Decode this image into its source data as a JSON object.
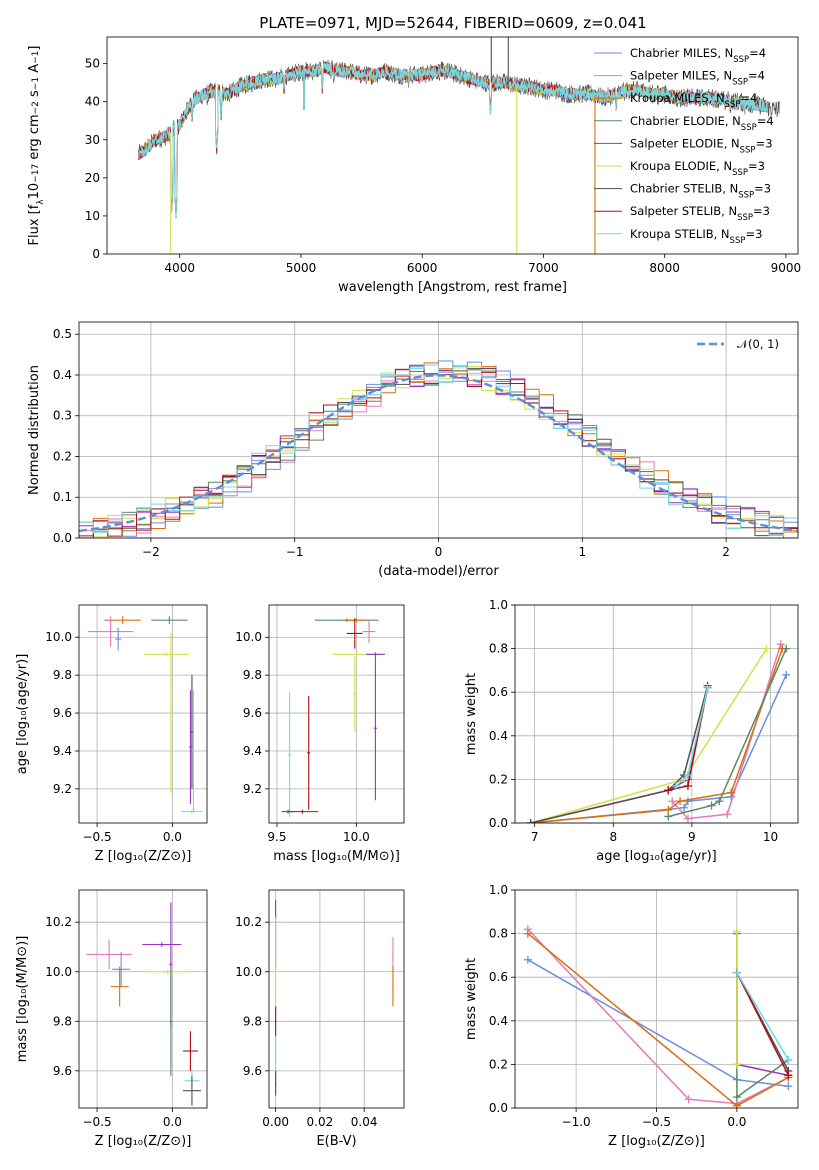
{
  "colors": [
    "#6a8ee0",
    "#e27bbf",
    "#d96e10",
    "#5a8a63",
    "#9a33bf",
    "#d6df4a",
    "#505050",
    "#b01010",
    "#75d8e0"
  ],
  "chart_data": [
    {
      "id": "spectrum",
      "type": "line",
      "title": "PLATE=0971, MJD=52644, FIBERID=0609, z=0.041",
      "xlabel": "wavelength [Angstrom, rest frame]",
      "ylabel": "Flux [fλ10⁻¹⁷ erg cm⁻² s⁻¹ A⁻¹]",
      "xlim": [
        3400,
        9100
      ],
      "ylim": [
        0,
        57
      ],
      "xticks": [
        "4000",
        "5000",
        "6000",
        "7000",
        "8000",
        "9000"
      ],
      "yticks": [
        "0",
        "10",
        "20",
        "30",
        "40",
        "50"
      ],
      "legend_position": "top-right",
      "series_names": [
        "Chabrier MILES, N_SSP=4",
        "Salpeter MILES, N_SSP=4",
        "Kroupa MILES, N_SSP=4",
        "Chabrier ELODIE, N_SSP=4",
        "Salpeter ELODIE, N_SSP=3",
        "Kroupa ELODIE, N_SSP=3",
        "Chabrier STELIB, N_SSP=3",
        "Salpeter STELIB, N_SSP=3",
        "Kroupa STELIB, N_SSP=3"
      ],
      "continuum": {
        "x": [
          3650,
          3700,
          3800,
          3900,
          3950,
          4000,
          4100,
          4200,
          4300,
          4400,
          4500,
          4600,
          4700,
          4800,
          4900,
          5000,
          5100,
          5200,
          5300,
          5400,
          5500,
          5600,
          5700,
          5800,
          5900,
          6000,
          6100,
          6200,
          6300,
          6400,
          6500,
          6600,
          6700,
          6800,
          6900,
          7000,
          7100,
          7200,
          7300,
          7400,
          7500,
          7600,
          7700,
          7800,
          7900,
          8000,
          8100,
          8200,
          8400,
          8600,
          8800,
          8900
        ],
        "y": [
          26,
          27,
          30,
          31,
          33,
          34,
          40,
          42,
          43,
          42,
          44,
          45,
          46,
          46,
          47,
          48,
          48,
          49,
          48,
          48,
          47,
          47,
          48,
          47,
          47,
          47,
          48,
          48,
          47,
          46,
          45,
          45,
          45,
          44,
          44,
          43,
          43,
          42,
          42,
          42,
          41,
          42,
          43,
          43,
          42,
          42,
          41,
          41,
          41,
          40,
          39,
          38
        ]
      },
      "absorption_lines": [
        [
          3934,
          11
        ],
        [
          3969,
          10
        ],
        [
          4102,
          35
        ],
        [
          4227,
          40
        ],
        [
          4305,
          27
        ],
        [
          4341,
          36
        ],
        [
          4861,
          42
        ],
        [
          5175,
          43
        ],
        [
          5270,
          45
        ],
        [
          5890,
          44
        ],
        [
          6563,
          37
        ],
        [
          7600,
          38
        ],
        [
          8500,
          38
        ],
        [
          8542,
          37
        ],
        [
          8662,
          37
        ]
      ],
      "spikes": [
        {
          "x": 3925,
          "bottom": 0,
          "series": 5
        },
        {
          "x": 6780,
          "bottom": 0,
          "series": 5
        },
        {
          "x": 7425,
          "bottom": 0,
          "series": 2
        },
        {
          "x": 6570,
          "top": 57,
          "series": 6
        },
        {
          "x": 6710,
          "top": 57,
          "series": 6
        }
      ]
    },
    {
      "id": "residuals",
      "type": "histogram",
      "xlabel": "(data-model)/error",
      "ylabel": "Normed distribution",
      "xlim": [
        -2.5,
        2.5
      ],
      "ylim": [
        0,
        0.53
      ],
      "xticks": [
        "−2",
        "−1",
        "0",
        "1",
        "2"
      ],
      "yticks": [
        "0.0",
        "0.1",
        "0.2",
        "0.3",
        "0.4",
        "0.5"
      ],
      "bin_width": 0.1,
      "reference_curve": {
        "name": "𝒩(0, 1)",
        "mean": 0,
        "sigma": 1
      },
      "legend_position": "top-right"
    },
    {
      "id": "age-vs-Z",
      "type": "scatter",
      "xlabel": "Z [log₁₀(Z/Z⊙)]",
      "ylabel": "age  [log₁₀(age/yr)]",
      "xlim": [
        -0.62,
        0.23
      ],
      "ylim": [
        9.02,
        10.17
      ],
      "xticks": [
        "−0.5",
        "0.0"
      ],
      "yticks": [
        "9.2",
        "9.4",
        "9.6",
        "9.8",
        "10.0"
      ],
      "crosses": [
        {
          "x": -0.33,
          "y": 10.09,
          "dx": 0.12,
          "dy": 0.02,
          "series": 2
        },
        {
          "x": -0.02,
          "y": 10.09,
          "dx": 0.12,
          "dy": 0.02,
          "series": 3
        },
        {
          "x": -0.41,
          "y": 10.03,
          "dx": 0.15,
          "dy": 0.08,
          "series": 1
        },
        {
          "x": -0.36,
          "y": 9.99,
          "dx": 0.02,
          "dy": 0.06,
          "series": 0
        },
        {
          "x": -0.04,
          "y": 9.91,
          "dx": 0.15,
          "dy": 0.01,
          "series": 5
        },
        {
          "x": -0.01,
          "y": 9.6,
          "dx": 0.01,
          "dy": 0.42,
          "series": 5
        },
        {
          "x": 0.13,
          "y": 9.5,
          "dx": 0.01,
          "dy": 0.3,
          "series": 6
        },
        {
          "x": 0.12,
          "y": 9.42,
          "dx": 0.01,
          "dy": 0.3,
          "series": 4
        },
        {
          "x": 0.14,
          "y": 9.4,
          "dx": 0.01,
          "dy": 0.32,
          "series": 8
        },
        {
          "x": 0.13,
          "y": 9.08,
          "dx": 0.07,
          "dy": 0.01,
          "series": 8
        }
      ]
    },
    {
      "id": "age-vs-mass",
      "type": "scatter",
      "xlabel": "mass [log₁₀(M/M⊙)]",
      "ylabel": "",
      "xlim": [
        9.45,
        10.3
      ],
      "ylim": [
        9.02,
        10.17
      ],
      "xticks": [
        "9.5",
        "10.0"
      ],
      "yticks": [
        "9.2",
        "9.4",
        "9.6",
        "9.8",
        "10.0"
      ],
      "crosses": [
        {
          "x": 9.94,
          "y": 10.09,
          "dx": 0.2,
          "dy": 0.01,
          "series": 3
        },
        {
          "x": 10.0,
          "y": 10.09,
          "dx": 0.06,
          "dy": 0.01,
          "series": 2
        },
        {
          "x": 9.99,
          "y": 10.02,
          "dx": 0.05,
          "dy": 0.08,
          "series": 7
        },
        {
          "x": 10.08,
          "y": 10.03,
          "dx": 0.04,
          "dy": 0.06,
          "series": 1
        },
        {
          "x": 10.0,
          "y": 9.91,
          "dx": 0.15,
          "dy": 0.01,
          "series": 5
        },
        {
          "x": 10.12,
          "y": 9.91,
          "dx": 0.06,
          "dy": 0.01,
          "series": 4
        },
        {
          "x": 9.99,
          "y": 9.7,
          "dx": 0.01,
          "dy": 0.2,
          "series": 5
        },
        {
          "x": 10.12,
          "y": 9.52,
          "dx": 0.01,
          "dy": 0.38,
          "series": 4
        },
        {
          "x": 9.7,
          "y": 9.39,
          "dx": 0.01,
          "dy": 0.3,
          "series": 7
        },
        {
          "x": 9.58,
          "y": 9.38,
          "dx": 0.01,
          "dy": 0.33,
          "series": 8
        },
        {
          "x": 9.66,
          "y": 9.08,
          "dx": 0.1,
          "dy": 0.01,
          "series": 7
        },
        {
          "x": 9.57,
          "y": 9.08,
          "dx": 0.04,
          "dy": 0.01,
          "series": 6
        }
      ]
    },
    {
      "id": "weight-vs-age",
      "type": "line",
      "xlabel": "age  [log₁₀(age/yr)]",
      "ylabel": "mass weight",
      "xlim": [
        6.75,
        10.35
      ],
      "ylim": [
        0,
        1
      ],
      "xticks": [
        "7",
        "8",
        "9",
        "10"
      ],
      "yticks": [
        "0.0",
        "0.2",
        "0.4",
        "0.6",
        "0.8",
        "1.0"
      ],
      "series": [
        {
          "x": [
            6.95,
            8.9,
            8.95,
            9.5,
            10.2
          ],
          "y": [
            0.0,
            0.07,
            0.1,
            0.12,
            0.68
          ],
          "series": 0
        },
        {
          "x": [
            8.75,
            8.95,
            9.45,
            10.13
          ],
          "y": [
            0.1,
            0.02,
            0.04,
            0.82
          ],
          "series": 1
        },
        {
          "x": [
            6.95,
            8.7,
            8.85,
            9.5,
            10.15
          ],
          "y": [
            0.0,
            0.06,
            0.1,
            0.14,
            0.8
          ],
          "series": 2
        },
        {
          "x": [
            8.7,
            9.25,
            9.35,
            10.2
          ],
          "y": [
            0.03,
            0.08,
            0.1,
            0.8
          ],
          "series": 3
        },
        {
          "x": [
            6.95,
            8.7,
            8.95,
            9.2
          ],
          "y": [
            0.0,
            0.15,
            0.2,
            0.62
          ],
          "series": 4
        },
        {
          "x": [
            6.95,
            8.9,
            9.95
          ],
          "y": [
            0.0,
            0.2,
            0.8
          ],
          "series": 5
        },
        {
          "x": [
            6.95,
            8.7,
            8.9,
            9.2
          ],
          "y": [
            0.0,
            0.15,
            0.22,
            0.63
          ],
          "series": 6
        },
        {
          "x": [
            8.7,
            8.95,
            9.2
          ],
          "y": [
            0.15,
            0.17,
            0.62
          ],
          "series": 7
        },
        {
          "x": [
            8.8,
            8.95,
            9.2
          ],
          "y": [
            0.17,
            0.22,
            0.62
          ],
          "series": 8
        }
      ]
    },
    {
      "id": "mass-vs-Z",
      "type": "scatter",
      "xlabel": "Z [log₁₀(Z/Z⊙)]",
      "ylabel": "mass [log₁₀(M/M⊙)]",
      "xlim": [
        -0.62,
        0.23
      ],
      "ylim": [
        9.45,
        10.33
      ],
      "xticks": [
        "−0.5",
        "0.0"
      ],
      "yticks": [
        "9.6",
        "9.8",
        "10.0",
        "10.2"
      ],
      "crosses": [
        {
          "x": -0.42,
          "y": 10.07,
          "dx": 0.15,
          "dy": 0.06,
          "series": 1
        },
        {
          "x": -0.34,
          "y": 10.01,
          "dx": 0.06,
          "dy": 0.07,
          "series": 0
        },
        {
          "x": -0.35,
          "y": 9.94,
          "dx": 0.06,
          "dy": 0.08,
          "series": 2
        },
        {
          "x": -0.07,
          "y": 10.11,
          "dx": 0.13,
          "dy": 0.01,
          "series": 4
        },
        {
          "x": -0.03,
          "y": 10.0,
          "dx": 0.13,
          "dy": 0.01,
          "series": 5
        },
        {
          "x": -0.01,
          "y": 10.03,
          "dx": 0.01,
          "dy": 0.25,
          "series": 4
        },
        {
          "x": -0.01,
          "y": 9.8,
          "dx": 0.01,
          "dy": 0.22,
          "series": 3
        },
        {
          "x": 0.12,
          "y": 9.68,
          "dx": 0.05,
          "dy": 0.08,
          "series": 7
        },
        {
          "x": 0.13,
          "y": 9.56,
          "dx": 0.05,
          "dy": 0.04,
          "series": 8
        },
        {
          "x": 0.13,
          "y": 9.52,
          "dx": 0.06,
          "dy": 0.06,
          "series": 6
        }
      ]
    },
    {
      "id": "mass-vs-EBV",
      "type": "scatter",
      "xlabel": "E(B-V)",
      "ylabel": "",
      "xlim": [
        -0.003,
        0.058
      ],
      "ylim": [
        9.45,
        10.33
      ],
      "xticks": [
        "0.00",
        "0.02",
        "0.04"
      ],
      "yticks": [
        "9.6",
        "9.8",
        "10.0",
        "10.2"
      ],
      "crosses": [
        {
          "x": 0.0,
          "y": 10.15,
          "dx": 0.0003,
          "dy": 0.14,
          "series": 4
        },
        {
          "x": 0.0,
          "y": 10.02,
          "dx": 0.0003,
          "dy": 0.2,
          "series": 5
        },
        {
          "x": 0.0,
          "y": 9.8,
          "dx": 0.0003,
          "dy": 0.06,
          "series": 7
        },
        {
          "x": 0.0,
          "y": 9.64,
          "dx": 0.0003,
          "dy": 0.1,
          "series": 8
        },
        {
          "x": 0.0,
          "y": 9.55,
          "dx": 0.0003,
          "dy": 0.05,
          "series": 6
        },
        {
          "x": 0.053,
          "y": 10.07,
          "dx": 0.0003,
          "dy": 0.07,
          "series": 1
        },
        {
          "x": 0.053,
          "y": 9.94,
          "dx": 0.0003,
          "dy": 0.08,
          "series": 2
        }
      ]
    },
    {
      "id": "weight-vs-Z",
      "type": "line",
      "xlabel": "Z [log₁₀(Z/Z⊙)]",
      "ylabel": "mass weight",
      "xlim": [
        -1.38,
        0.38
      ],
      "ylim": [
        0,
        1
      ],
      "xticks": [
        "−1.0",
        "−0.5",
        "0.0"
      ],
      "yticks": [
        "0.0",
        "0.2",
        "0.4",
        "0.6",
        "0.8",
        "1.0"
      ],
      "series": [
        {
          "x": [
            -1.3,
            0.0,
            0.32
          ],
          "y": [
            0.68,
            0.13,
            0.1
          ],
          "series": 0
        },
        {
          "x": [
            -1.3,
            -0.3,
            0.0,
            0.32
          ],
          "y": [
            0.82,
            0.04,
            0.02,
            0.14
          ],
          "series": 1
        },
        {
          "x": [
            -1.3,
            0.0,
            0.32
          ],
          "y": [
            0.8,
            0.01,
            0.14
          ],
          "series": 2
        },
        {
          "x": [
            0.0,
            0.0,
            0.32
          ],
          "y": [
            0.8,
            0.05,
            0.22
          ],
          "series": 3
        },
        {
          "x": [
            0.0,
            0.0,
            0.32
          ],
          "y": [
            0.62,
            0.2,
            0.15
          ],
          "series": 4
        },
        {
          "x": [
            0.0,
            0.0
          ],
          "y": [
            0.81,
            0.2
          ],
          "series": 5
        },
        {
          "x": [
            0.0,
            0.32
          ],
          "y": [
            0.62,
            0.17
          ],
          "series": 6
        },
        {
          "x": [
            0.0,
            0.32
          ],
          "y": [
            0.62,
            0.15
          ],
          "series": 7
        },
        {
          "x": [
            0.0,
            0.32
          ],
          "y": [
            0.62,
            0.22
          ],
          "series": 8
        }
      ]
    }
  ]
}
